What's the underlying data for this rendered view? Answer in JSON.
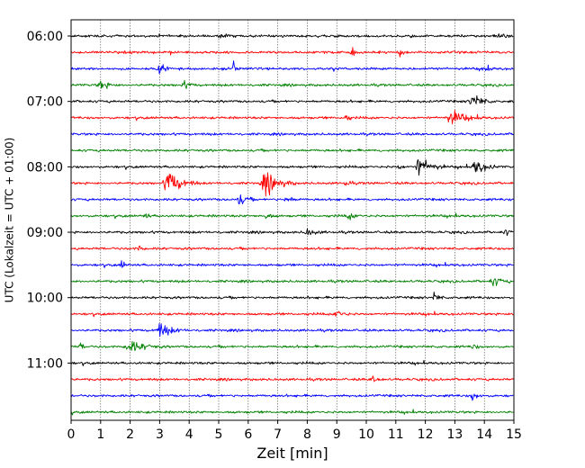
{
  "chart_data": {
    "type": "line",
    "chart_kind": "helicorder",
    "xlabel": "Zeit  [min]",
    "ylabel": "UTC (Lokalzeit = UTC + 01:00)",
    "xlim": [
      0,
      15
    ],
    "x_ticks": [
      "0",
      "1",
      "2",
      "3",
      "4",
      "5",
      "6",
      "7",
      "8",
      "9",
      "10",
      "11",
      "12",
      "13",
      "14",
      "15"
    ],
    "y_tick_labels": [
      "06:00",
      "07:00",
      "08:00",
      "09:00",
      "10:00",
      "11:00"
    ],
    "trace_start_times": [
      "06:00",
      "06:15",
      "06:30",
      "06:45",
      "07:00",
      "07:15",
      "07:30",
      "07:45",
      "08:00",
      "08:15",
      "08:30",
      "08:45",
      "09:00",
      "09:15",
      "09:30",
      "09:45",
      "10:00",
      "10:15",
      "10:30",
      "10:45",
      "11:00",
      "11:15",
      "11:30",
      "11:45"
    ],
    "trace_minutes_per_line": 15,
    "grid_x": true,
    "colors": [
      "#000000",
      "#ff0000",
      "#0000ff",
      "#008000"
    ],
    "events": [
      {
        "trace": 0,
        "minute": 5.0,
        "amplitude": 0.35,
        "duration": 0.2
      },
      {
        "trace": 0,
        "minute": 14.5,
        "amplitude": 0.3,
        "duration": 0.3
      },
      {
        "trace": 1,
        "minute": 9.5,
        "amplitude": 0.35,
        "duration": 0.2
      },
      {
        "trace": 1,
        "minute": 11.1,
        "amplitude": 0.35,
        "duration": 0.2
      },
      {
        "trace": 2,
        "minute": 5.5,
        "amplitude": 0.95,
        "duration": 0.1
      },
      {
        "trace": 2,
        "minute": 3.0,
        "amplitude": 0.3,
        "duration": 0.4
      },
      {
        "trace": 2,
        "minute": 14.0,
        "amplitude": 0.3,
        "duration": 0.3
      },
      {
        "trace": 3,
        "minute": 1.0,
        "amplitude": 0.35,
        "duration": 0.5
      },
      {
        "trace": 3,
        "minute": 3.8,
        "amplitude": 0.25,
        "duration": 0.4
      },
      {
        "trace": 4,
        "minute": 13.6,
        "amplitude": 0.6,
        "duration": 0.6
      },
      {
        "trace": 5,
        "minute": 9.3,
        "amplitude": 0.35,
        "duration": 0.2
      },
      {
        "trace": 5,
        "minute": 12.9,
        "amplitude": 0.5,
        "duration": 0.9
      },
      {
        "trace": 8,
        "minute": 11.8,
        "amplitude": 0.75,
        "duration": 0.7
      },
      {
        "trace": 8,
        "minute": 13.7,
        "amplitude": 0.55,
        "duration": 0.6
      },
      {
        "trace": 8,
        "minute": 11.1,
        "amplitude": 0.3,
        "duration": 0.2
      },
      {
        "trace": 9,
        "minute": 3.3,
        "amplitude": 0.95,
        "duration": 0.8
      },
      {
        "trace": 9,
        "minute": 6.6,
        "amplitude": 0.8,
        "duration": 0.8
      },
      {
        "trace": 9,
        "minute": 9.3,
        "amplitude": 0.35,
        "duration": 0.2
      },
      {
        "trace": 10,
        "minute": 5.7,
        "amplitude": 0.45,
        "duration": 0.4
      },
      {
        "trace": 10,
        "minute": 7.3,
        "amplitude": 0.25,
        "duration": 0.4
      },
      {
        "trace": 11,
        "minute": 2.5,
        "amplitude": 0.3,
        "duration": 0.2
      },
      {
        "trace": 11,
        "minute": 6.6,
        "amplitude": 0.3,
        "duration": 0.3
      },
      {
        "trace": 11,
        "minute": 9.4,
        "amplitude": 0.25,
        "duration": 0.4
      },
      {
        "trace": 12,
        "minute": 8.0,
        "amplitude": 0.25,
        "duration": 0.5
      },
      {
        "trace": 12,
        "minute": 14.7,
        "amplitude": 0.3,
        "duration": 0.2
      },
      {
        "trace": 13,
        "minute": 2.3,
        "amplitude": 0.3,
        "duration": 0.2
      },
      {
        "trace": 14,
        "minute": 1.7,
        "amplitude": 0.45,
        "duration": 0.2
      },
      {
        "trace": 15,
        "minute": 14.3,
        "amplitude": 0.35,
        "duration": 0.5
      },
      {
        "trace": 16,
        "minute": 12.3,
        "amplitude": 0.35,
        "duration": 0.3
      },
      {
        "trace": 17,
        "minute": 9.0,
        "amplitude": 0.35,
        "duration": 0.4
      },
      {
        "trace": 18,
        "minute": 3.0,
        "amplitude": 0.55,
        "duration": 0.7
      },
      {
        "trace": 19,
        "minute": 0.3,
        "amplitude": 0.35,
        "duration": 0.2
      },
      {
        "trace": 19,
        "minute": 2.0,
        "amplitude": 0.45,
        "duration": 0.9
      },
      {
        "trace": 19,
        "minute": 13.6,
        "amplitude": 0.35,
        "duration": 0.2
      },
      {
        "trace": 21,
        "minute": 10.2,
        "amplitude": 0.35,
        "duration": 0.3
      },
      {
        "trace": 22,
        "minute": 13.6,
        "amplitude": 0.4,
        "duration": 0.3
      }
    ]
  }
}
